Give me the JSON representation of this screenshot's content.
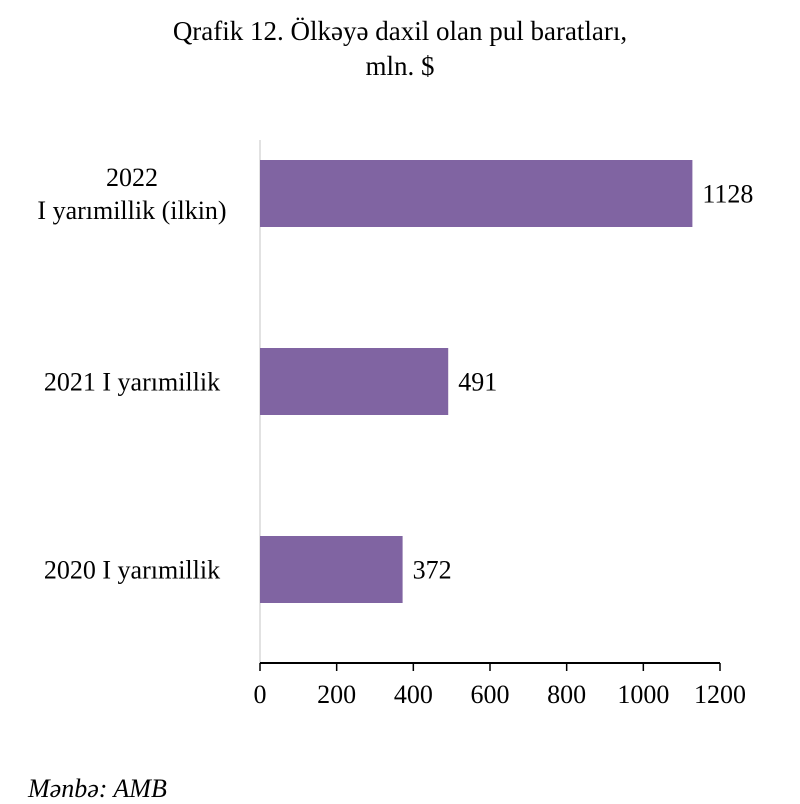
{
  "chart_data": {
    "type": "bar",
    "orientation": "horizontal",
    "title": "Qrafik 12. Ölkəyə daxil olan pul baratları,",
    "subtitle": "mln. $",
    "categories": [
      "2022\nI yarımillik (ilkin)",
      "2021 I yarımillik",
      "2020 I yarımillik"
    ],
    "values": [
      1128,
      491,
      372
    ],
    "data_labels": [
      "1128",
      "491",
      "372"
    ],
    "xlim": [
      0,
      1200
    ],
    "xticks": [
      0,
      200,
      400,
      600,
      800,
      1000,
      1200
    ],
    "grid": false,
    "legend": "none",
    "bar_color": "#8064a2"
  },
  "source": "Mənbə: AMB"
}
